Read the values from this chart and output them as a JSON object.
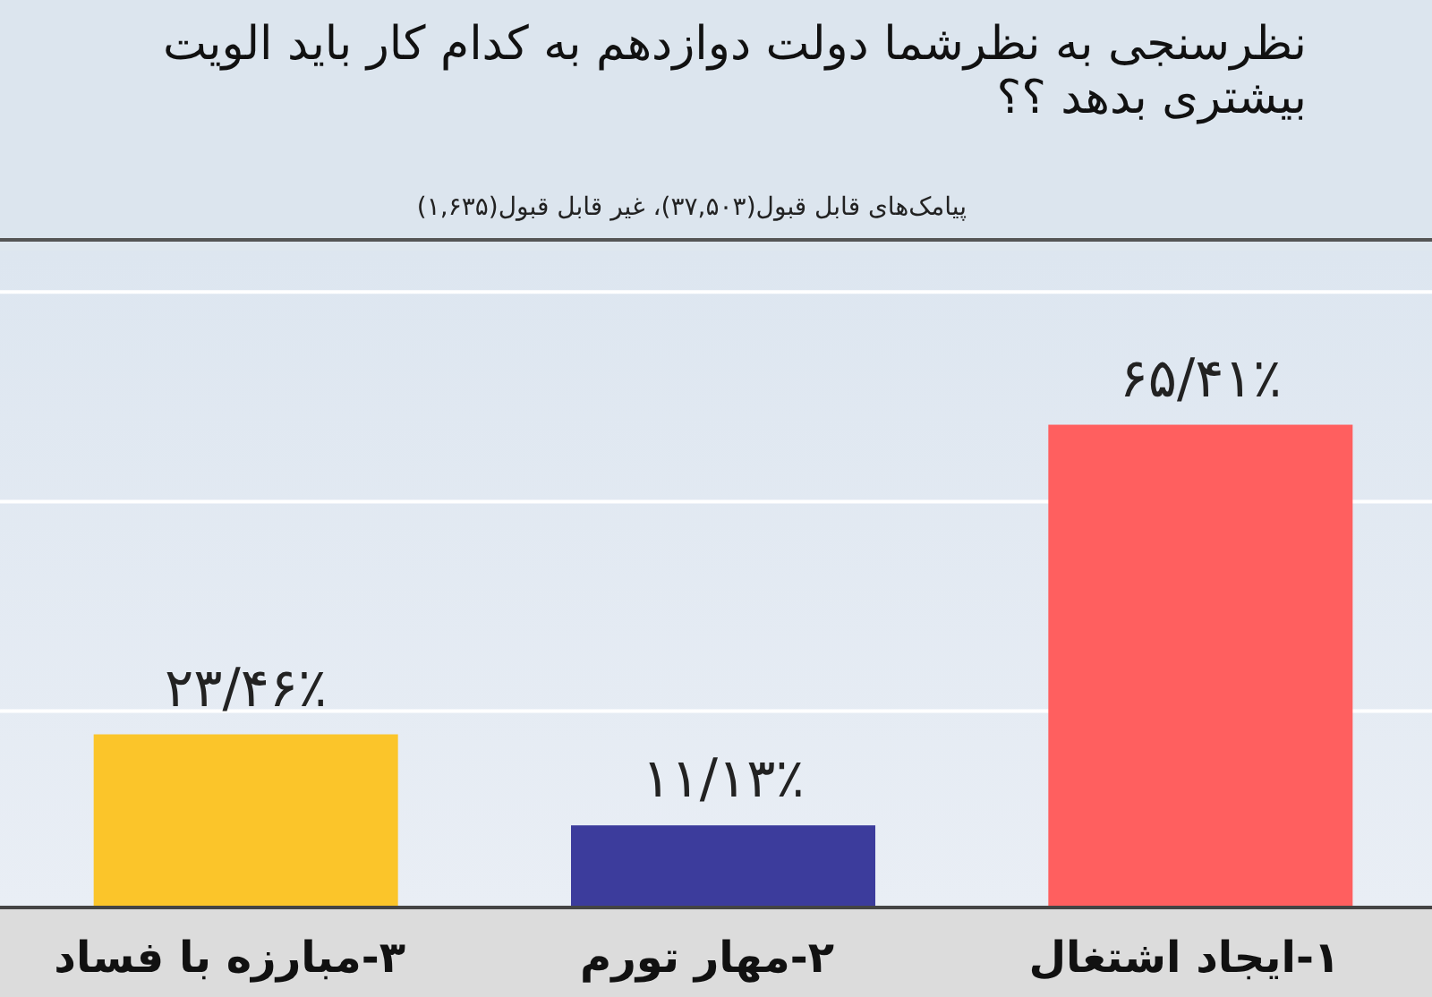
{
  "chart_data": {
    "type": "bar",
    "title": "نظرسنجی به نظرشما دولت دوازدهم به کدام کار باید الویت بیشتری بدهد ؟؟",
    "subtitle": "پیامک‌های قابل قبول(۳۷,۵۰۳)، غیر قابل قبول(۱,۶۳۵)",
    "categories": [
      "۳-مبارزه با فساد",
      "۲-مهار تورم",
      "۱-ایجاد اشتغال"
    ],
    "values": [
      23.46,
      11.13,
      65.41
    ],
    "colors": [
      "#fbc52a",
      "#3c3c9c",
      "#ff5f5f"
    ],
    "value_labels": [
      "۲۳/۴۶٪",
      "۱۱/۱۳٪",
      "۶۵/۴۱٪"
    ],
    "ylim": [
      0,
      89
    ],
    "yticks": [
      {
        "value": 26.6,
        "label": null
      },
      {
        "value": 55,
        "label": null
      },
      {
        "value": 83.4,
        "label": null
      }
    ],
    "grid": "y",
    "tick_labels": "x"
  }
}
